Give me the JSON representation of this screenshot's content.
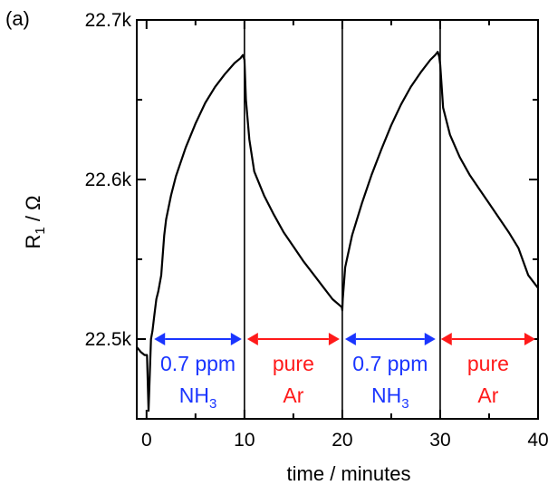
{
  "chart_data": {
    "type": "line",
    "panel_label": "(a)",
    "xlabel": "time / minutes",
    "ylabel_main": "R",
    "ylabel_sub": "1",
    "ylabel_rest": " / Ω",
    "xlim": [
      -1,
      40
    ],
    "ylim": [
      22.45,
      22.7
    ],
    "x_ticks": [
      0,
      10,
      20,
      30,
      40
    ],
    "x_tick_labels": [
      "0",
      "10",
      "20",
      "30",
      "40"
    ],
    "y_ticks": [
      22.5,
      22.6,
      22.7
    ],
    "y_tick_labels": [
      "22.5k",
      "22.6k",
      "22.7k"
    ],
    "y_minor_ticks": [
      22.45,
      22.55,
      22.65
    ],
    "grid": false,
    "vlines": [
      10,
      20,
      30
    ],
    "series": [
      {
        "color": "#000000",
        "x": [
          -1.0,
          -0.6,
          -0.2,
          0.05,
          0.2,
          0.45,
          0.6,
          0.8,
          1.0,
          1.2,
          1.5,
          1.8,
          2.0,
          2.5,
          3.0,
          4.0,
          5.0,
          6.0,
          7.0,
          8.0,
          9.0,
          9.6,
          9.85,
          10.0,
          10.15,
          10.5,
          11.0,
          12.0,
          13.0,
          14.0,
          15.0,
          16.0,
          17.0,
          18.0,
          19.0,
          19.95,
          20.0,
          20.05,
          20.3,
          21.0,
          22.0,
          23.0,
          24.0,
          25.0,
          26.0,
          27.0,
          28.0,
          29.0,
          29.5,
          29.75,
          29.9,
          30.0,
          30.3,
          31.0,
          32.0,
          33.0,
          34.0,
          35.0,
          36.0,
          37.0,
          38.0,
          39.0,
          40.0
        ],
        "y": [
          22.495,
          22.492,
          22.49,
          22.49,
          22.455,
          22.5,
          22.505,
          22.515,
          22.525,
          22.53,
          22.54,
          22.565,
          22.575,
          22.59,
          22.602,
          22.62,
          22.635,
          22.648,
          22.658,
          22.666,
          22.673,
          22.676,
          22.678,
          22.675,
          22.65,
          22.625,
          22.605,
          22.59,
          22.578,
          22.567,
          22.558,
          22.549,
          22.541,
          22.533,
          22.525,
          22.52,
          22.518,
          22.525,
          22.545,
          22.565,
          22.585,
          22.603,
          22.619,
          22.634,
          22.647,
          22.658,
          22.667,
          22.675,
          22.678,
          22.68,
          22.677,
          22.672,
          22.645,
          22.628,
          22.614,
          22.603,
          22.594,
          22.585,
          22.576,
          22.567,
          22.557,
          22.54,
          22.532
        ]
      }
    ],
    "annotations": [
      {
        "id": "nh3-1",
        "x_start": 0.5,
        "x_end": 10,
        "color": "#1a35ff",
        "line1": "0.7 ppm",
        "line2_main": "NH",
        "line2_sub": "3"
      },
      {
        "id": "ar-1",
        "x_start": 10,
        "x_end": 20,
        "color": "#ff1a1a",
        "line1": "pure",
        "line2_main": "Ar",
        "line2_sub": ""
      },
      {
        "id": "nh3-2",
        "x_start": 20,
        "x_end": 29.8,
        "color": "#1a35ff",
        "line1": "0.7 ppm",
        "line2_main": "NH",
        "line2_sub": "3"
      },
      {
        "id": "ar-2",
        "x_start": 29.8,
        "x_end": 40,
        "color": "#ff1a1a",
        "line1": "pure",
        "line2_main": "Ar",
        "line2_sub": ""
      }
    ],
    "annotation_y": 22.5
  }
}
